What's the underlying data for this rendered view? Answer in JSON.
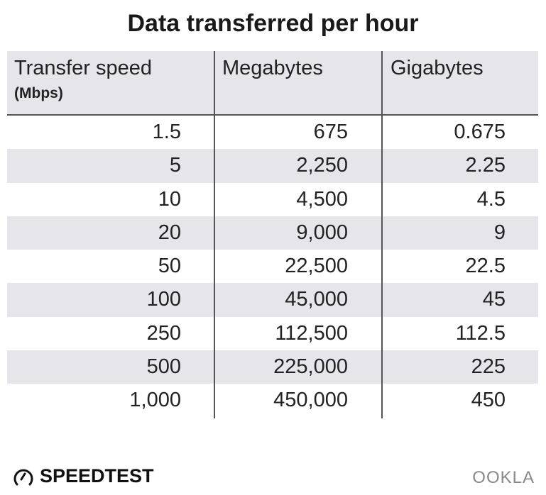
{
  "chart_data": {
    "type": "table",
    "title": "Data transferred per hour",
    "columns": [
      {
        "label": "Transfer speed",
        "sublabel": "(Mbps)"
      },
      {
        "label": "Megabytes"
      },
      {
        "label": "Gigabytes"
      }
    ],
    "rows": [
      [
        "1.5",
        "675",
        "0.675"
      ],
      [
        "5",
        "2,250",
        "2.25"
      ],
      [
        "10",
        "4,500",
        "4.5"
      ],
      [
        "20",
        "9,000",
        "9"
      ],
      [
        "50",
        "22,500",
        "22.5"
      ],
      [
        "100",
        "45,000",
        "45"
      ],
      [
        "250",
        "112,500",
        "112.5"
      ],
      [
        "500",
        "225,000",
        "225"
      ],
      [
        "1,000",
        "450,000",
        "450"
      ]
    ]
  },
  "branding": {
    "speedtest": "SPEEDTEST",
    "ookla": "OOKLA"
  },
  "colors": {
    "header_bg": "#e6e6ea",
    "stripe": "#e6e6ea",
    "rule": "#555555"
  }
}
